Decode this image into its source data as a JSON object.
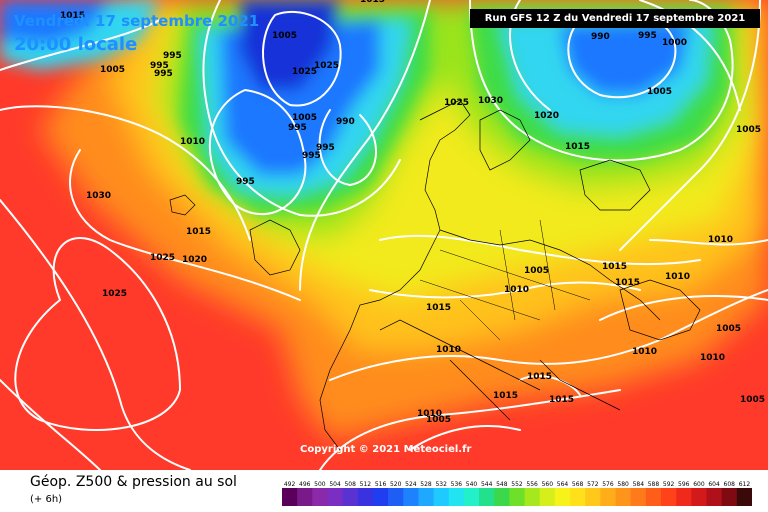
{
  "header": {
    "date": "Vendredi 17 septembre 2021",
    "time": "20:00 locale",
    "run": "Run GFS 12 Z du Vendredi 17 septembre 2021"
  },
  "copyright": "Copyright © 2021 Meteociel.fr",
  "footer": {
    "title": "Géop. Z500 & pression au sol",
    "subtitle": "(+ 6h)"
  },
  "colors": {
    "ocean_red": "#ff3a2a",
    "warm_orange": "#ff8c1a",
    "yellow": "#f2ea1a",
    "green": "#3ddc4a",
    "cyan": "#33d6f0",
    "blue": "#1f78ff",
    "deep_blue": "#1230d8"
  },
  "scale_labels": [
    "492",
    "496",
    "500",
    "504",
    "508",
    "512",
    "516",
    "520",
    "524",
    "528",
    "532",
    "536",
    "540",
    "544",
    "548",
    "552",
    "556",
    "560",
    "564",
    "568",
    "572",
    "576",
    "580",
    "584",
    "588",
    "592",
    "596",
    "600",
    "604",
    "608",
    "612"
  ],
  "scale_colors": [
    "#5a005a",
    "#7a1a8a",
    "#8a2aa8",
    "#7a2ec2",
    "#5a32d2",
    "#3a32e0",
    "#1e3ef0",
    "#1e5ef5",
    "#1e82ff",
    "#1ea8ff",
    "#1ecaff",
    "#22e4f0",
    "#22f0c8",
    "#22e08c",
    "#3ad84a",
    "#6ee02a",
    "#a6e81e",
    "#d6ef1a",
    "#f6f21a",
    "#ffe01a",
    "#ffc81a",
    "#ffae1a",
    "#ff941a",
    "#ff7a1a",
    "#ff5e1a",
    "#ff421a",
    "#f02a1a",
    "#d21a1a",
    "#b0101a",
    "#800a12",
    "#3a0a0a"
  ],
  "isobars": [
    {
      "label": "995",
      "pos": "a"
    },
    {
      "label": "1005",
      "pos": "b"
    },
    {
      "label": "995",
      "pos": "c"
    },
    {
      "label": "995",
      "pos": "d"
    },
    {
      "label": "1005",
      "pos": "e"
    },
    {
      "label": "1025",
      "pos": "f"
    },
    {
      "label": "1025",
      "pos": "g"
    },
    {
      "label": "1005",
      "pos": "h"
    },
    {
      "label": "995",
      "pos": "i"
    },
    {
      "label": "990",
      "pos": "j"
    },
    {
      "label": "995",
      "pos": "k"
    },
    {
      "label": "995",
      "pos": "l"
    },
    {
      "label": "1010",
      "pos": "m"
    },
    {
      "label": "995",
      "pos": "n"
    },
    {
      "label": "1030",
      "pos": "o"
    },
    {
      "label": "1015",
      "pos": "p"
    },
    {
      "label": "1025",
      "pos": "q"
    },
    {
      "label": "1020",
      "pos": "r"
    },
    {
      "label": "1025",
      "pos": "s"
    },
    {
      "label": "1025",
      "pos": "t"
    },
    {
      "label": "1030",
      "pos": "u"
    },
    {
      "label": "1020",
      "pos": "v"
    },
    {
      "label": "1015",
      "pos": "w"
    },
    {
      "label": "990",
      "pos": "x"
    },
    {
      "label": "995",
      "pos": "y"
    },
    {
      "label": "1000",
      "pos": "z"
    },
    {
      "label": "1005",
      "pos": "aa"
    },
    {
      "label": "1005",
      "pos": "ab"
    },
    {
      "label": "1010",
      "pos": "ac"
    },
    {
      "label": "1015",
      "pos": "ad"
    },
    {
      "label": "1005",
      "pos": "ae"
    },
    {
      "label": "1015",
      "pos": "af"
    },
    {
      "label": "1010",
      "pos": "ag"
    },
    {
      "label": "1010",
      "pos": "ah"
    },
    {
      "label": "1015",
      "pos": "ai"
    },
    {
      "label": "1010",
      "pos": "aj"
    },
    {
      "label": "1005",
      "pos": "ak"
    },
    {
      "label": "1010",
      "pos": "al"
    },
    {
      "label": "1015",
      "pos": "am"
    },
    {
      "label": "1015",
      "pos": "an"
    },
    {
      "label": "1015",
      "pos": "ao"
    },
    {
      "label": "1010",
      "pos": "ap"
    },
    {
      "label": "1005",
      "pos": "aq"
    },
    {
      "label": "1015",
      "pos": "ar"
    },
    {
      "label": "1015",
      "pos": "as"
    },
    {
      "label": "1010",
      "pos": "at"
    },
    {
      "label": "1005",
      "pos": "au"
    }
  ]
}
